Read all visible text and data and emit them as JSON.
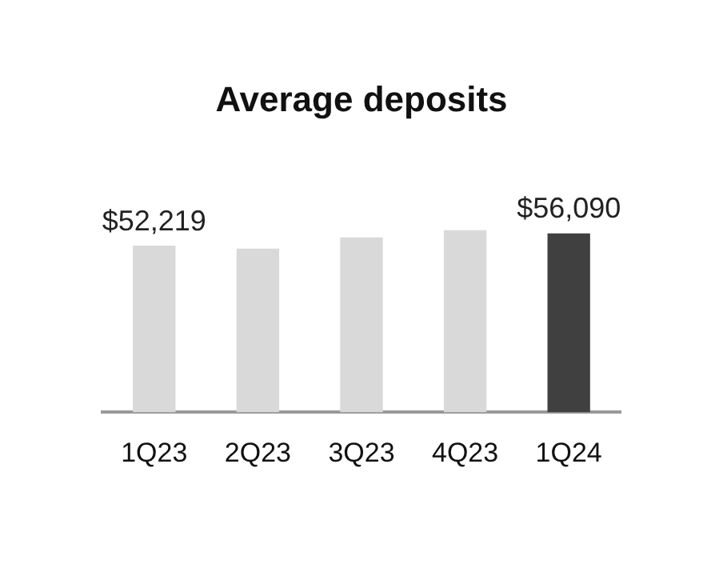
{
  "chart_data": {
    "type": "bar",
    "title": "Average deposits",
    "categories": [
      "1Q23",
      "2Q23",
      "3Q23",
      "4Q23",
      "1Q24"
    ],
    "values": [
      52219,
      51300,
      54800,
      57060,
      56090
    ],
    "value_labels": [
      "$52,219",
      null,
      null,
      null,
      "$56,090"
    ],
    "colors": [
      "#d9d9d9",
      "#d9d9d9",
      "#d9d9d9",
      "#d9d9d9",
      "#404040"
    ],
    "tick_labels": "x",
    "grid": false,
    "legend": false
  }
}
